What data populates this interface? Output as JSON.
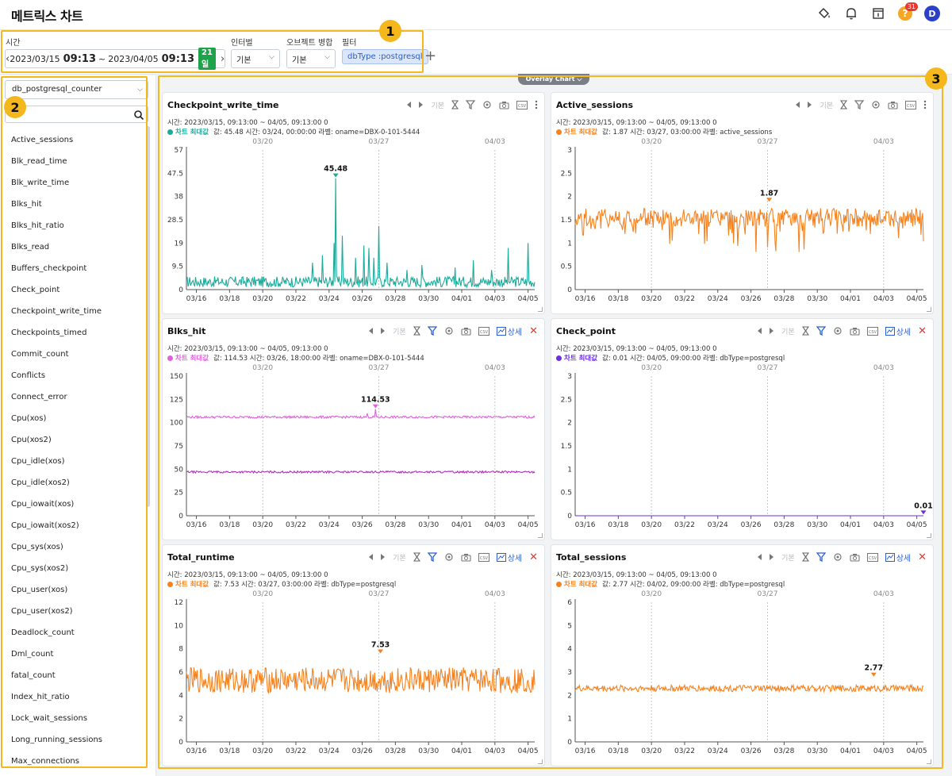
{
  "header": {
    "title": "메트릭스 차트",
    "notification_count": "31",
    "help_glyph": "?",
    "avatar_letter": "D"
  },
  "toolbar": {
    "time_label": "시간",
    "time_start_date": "2023/03/15",
    "time_start_time": "09:13",
    "time_sep": "~",
    "time_end_date": "2023/04/05",
    "time_end_time": "09:13",
    "days": "21일",
    "interval_label": "인터벌",
    "interval_value": "기본",
    "merge_label": "오브젝트 병합",
    "merge_value": "기본",
    "filter_label": "필터",
    "filter_chip": "dbType :postgresql"
  },
  "annotations": [
    "1",
    "2",
    "3"
  ],
  "sidebar": {
    "datasource": "db_postgresql_counter",
    "search_placeholder": "",
    "metrics": [
      "Active_sessions",
      "Blk_read_time",
      "Blk_write_time",
      "Blks_hit",
      "Blks_hit_ratio",
      "Blks_read",
      "Buffers_checkpoint",
      "Check_point",
      "Checkpoint_write_time",
      "Checkpoints_timed",
      "Commit_count",
      "Conflicts",
      "Connect_error",
      "Cpu(xos)",
      "Cpu(xos2)",
      "Cpu_idle(xos)",
      "Cpu_idle(xos2)",
      "Cpu_iowait(xos)",
      "Cpu_iowait(xos2)",
      "Cpu_sys(xos)",
      "Cpu_sys(xos2)",
      "Cpu_user(xos)",
      "Cpu_user(xos2)",
      "Deadlock_count",
      "Dml_count",
      "fatal_count",
      "Index_hit_ratio",
      "Lock_wait_sessions",
      "Long_running_sessions",
      "Max_connections"
    ]
  },
  "main": {
    "overlay_label": "Overlay Chart",
    "tool_basic": "기본",
    "tool_detail": "상세"
  },
  "chart_data": [
    {
      "type": "line",
      "title": "Checkpoint_write_time",
      "info": "시간: 2023/03/15, 09:13:00 ~ 04/05, 09:13:00   0",
      "max_label": "차트 최대값",
      "max_text": "값: 45.48   시간: 03/24, 00:00:00   라벨: oname=DBX-0-101-5444",
      "color": "#1aab9b",
      "ylim": [
        0,
        57
      ],
      "yticks": [
        "0",
        "9.5",
        "19",
        "28.5",
        "38",
        "47.5",
        "57"
      ],
      "xticks": [
        "03/16",
        "03/18",
        "03/20",
        "03/22",
        "03/24",
        "03/26",
        "03/28",
        "03/30",
        "04/01",
        "04/03",
        "04/05"
      ],
      "week_ticks": [
        "03/20",
        "03/27",
        "04/03"
      ],
      "max": {
        "day": 9.0,
        "value": 45.48,
        "label": "45.48"
      },
      "series": [
        {
          "baseline": 3.2,
          "noise": 2.2,
          "spikes": [
            [
              7.6,
              11
            ],
            [
              8.2,
              14
            ],
            [
              8.9,
              19
            ],
            [
              9.0,
              45.48
            ],
            [
              9.4,
              22
            ],
            [
              10.2,
              13
            ],
            [
              10.7,
              18
            ],
            [
              11.0,
              17
            ],
            [
              11.3,
              13
            ],
            [
              11.6,
              26
            ],
            [
              12.1,
              11
            ],
            [
              13.3,
              8
            ],
            [
              14.2,
              10
            ],
            [
              16.2,
              9
            ],
            [
              17.3,
              12
            ],
            [
              18.4,
              8
            ],
            [
              19.4,
              17
            ],
            [
              20.6,
              19
            ]
          ]
        }
      ]
    },
    {
      "type": "line",
      "title": "Active_sessions",
      "info": "시간: 2023/03/15, 09:13:00 ~ 04/05, 09:13:00   0",
      "max_label": "차트 최대값",
      "max_text": "값: 1.87   시간: 03/27, 03:00:00   라벨: active_sessions",
      "color": "#f5821f",
      "ylim": [
        0,
        3
      ],
      "yticks": [
        "0",
        "0.5",
        "1",
        "1.5",
        "2",
        "2.5",
        "3"
      ],
      "xticks": [
        "03/16",
        "03/18",
        "03/20",
        "03/22",
        "03/24",
        "03/26",
        "03/28",
        "03/30",
        "04/01",
        "04/03",
        "04/05"
      ],
      "week_ticks": [
        "03/20",
        "03/27",
        "04/03"
      ],
      "max": {
        "day": 11.7,
        "value": 1.87,
        "label": "1.87"
      },
      "series": [
        {
          "baseline": 1.55,
          "noise": 0.2,
          "dips": 0.35
        }
      ]
    },
    {
      "type": "line",
      "title": "Blks_hit",
      "info": "시간: 2023/03/15, 09:13:00 ~ 04/05, 09:13:00   0",
      "max_label": "차트 최대값",
      "max_text": "값: 114.53   시간: 03/26, 18:00:00   라벨: oname=DBX-0-101-5444",
      "color": "#e061e0",
      "ylim": [
        0,
        150
      ],
      "yticks": [
        "0",
        "25",
        "50",
        "75",
        "100",
        "125",
        "150"
      ],
      "xticks": [
        "03/16",
        "03/18",
        "03/20",
        "03/22",
        "03/24",
        "03/26",
        "03/28",
        "03/30",
        "04/01",
        "04/03",
        "04/05"
      ],
      "week_ticks": [
        "03/20",
        "03/27",
        "04/03"
      ],
      "max": {
        "day": 11.4,
        "value": 114.53,
        "label": "114.53"
      },
      "series": [
        {
          "baseline": 106,
          "noise": 1.2,
          "color": "#e061e0",
          "spikes": [
            [
              11.4,
              114.53
            ],
            [
              10.9,
              110
            ]
          ]
        },
        {
          "baseline": 47,
          "noise": 1.1,
          "color": "#b42ec2"
        }
      ]
    },
    {
      "type": "line",
      "title": "Check_point",
      "info": "시간: 2023/03/15, 09:13:00 ~ 04/05, 09:13:00   0",
      "max_label": "차트 최대값",
      "max_text": "값: 0.01   시간: 04/05, 09:00:00   라벨: dbType=postgresql",
      "color": "#6b2fe0",
      "ylim": [
        0,
        3
      ],
      "yticks": [
        "0",
        "0.5",
        "1",
        "1.5",
        "2",
        "2.5",
        "3"
      ],
      "xticks": [
        "03/16",
        "03/18",
        "03/20",
        "03/22",
        "03/24",
        "03/26",
        "03/28",
        "03/30",
        "04/01",
        "04/03",
        "04/05"
      ],
      "week_ticks": [
        "03/20",
        "03/27",
        "04/03"
      ],
      "max": {
        "day": 21.0,
        "value": 0.01,
        "label": "0.01"
      },
      "series": [
        {
          "baseline": 0.0,
          "noise": 0
        }
      ]
    },
    {
      "type": "line",
      "title": "Total_runtime",
      "info": "시간: 2023/03/15, 09:13:00 ~ 04/05, 09:13:00   0",
      "max_label": "차트 최대값",
      "max_text": "값: 7.53   시간: 03/27, 03:00:00   라벨: dbType=postgresql",
      "color": "#f5821f",
      "ylim": [
        0,
        12
      ],
      "yticks": [
        "0",
        "2",
        "4",
        "6",
        "8",
        "10",
        "12"
      ],
      "xticks": [
        "03/16",
        "03/18",
        "03/20",
        "03/22",
        "03/24",
        "03/26",
        "03/28",
        "03/30",
        "04/01",
        "04/03",
        "04/05"
      ],
      "week_ticks": [
        "03/20",
        "03/27",
        "04/03"
      ],
      "max": {
        "day": 11.7,
        "value": 7.53,
        "label": "7.53"
      },
      "series": [
        {
          "baseline": 5.3,
          "noise": 1.1
        }
      ]
    },
    {
      "type": "line",
      "title": "Total_sessions",
      "info": "시간: 2023/03/15, 09:13:00 ~ 04/05, 09:13:00   0",
      "max_label": "차트 최대값",
      "max_text": "값: 2.77   시간: 04/02, 09:00:00   라벨: dbType=postgresql",
      "color": "#f5821f",
      "ylim": [
        0,
        6
      ],
      "yticks": [
        "0",
        "1",
        "2",
        "3",
        "4",
        "5",
        "6"
      ],
      "xticks": [
        "03/16",
        "03/18",
        "03/20",
        "03/22",
        "03/24",
        "03/26",
        "03/28",
        "03/30",
        "04/01",
        "04/03",
        "04/05"
      ],
      "week_ticks": [
        "03/20",
        "03/27",
        "04/03"
      ],
      "max": {
        "day": 18.0,
        "value": 2.77,
        "label": "2.77"
      },
      "series": [
        {
          "baseline": 2.3,
          "noise": 0.14
        }
      ]
    }
  ]
}
